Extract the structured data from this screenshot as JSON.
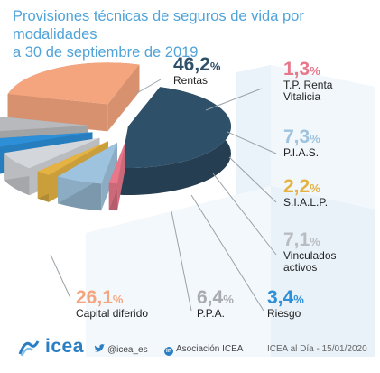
{
  "title": {
    "line1": "Provisiones técnicas de seguros de vida por modalidades",
    "line2": "a 30 de septiembre de 2019"
  },
  "chart_data": {
    "type": "pie",
    "title": "Provisiones técnicas de seguros de vida por modalidades a 30 de septiembre de 2019",
    "unit": "%",
    "slices": [
      {
        "name": "Rentas",
        "value_text": "46,2",
        "value": 46.2,
        "color": "#2f5069"
      },
      {
        "name": "T.P. Renta Vitalicia",
        "value_text": "1,3",
        "value": 1.3,
        "color": "#e8778a"
      },
      {
        "name": "P.I.A.S.",
        "value_text": "7,3",
        "value": 7.3,
        "color": "#9ec3de"
      },
      {
        "name": "S.I.A.L.P.",
        "value_text": "2,2",
        "value": 2.2,
        "color": "#e4b343"
      },
      {
        "name": "Vinculados activos",
        "value_text": "7,1",
        "value": 7.1,
        "color": "#d3d6da"
      },
      {
        "name": "Riesgo",
        "value_text": "3,4",
        "value": 3.4,
        "color": "#2c8fd8"
      },
      {
        "name": "P.P.A.",
        "value_text": "6,4",
        "value": 6.4,
        "color": "#b7b9bc"
      },
      {
        "name": "Capital diferido",
        "value_text": "26,1",
        "value": 26.1,
        "color": "#f4a57d"
      }
    ],
    "label_colors": {
      "Rentas": "#2f5069",
      "T.P. Renta Vitalicia": "#e8778a",
      "P.I.A.S.": "#9ec3de",
      "S.I.A.L.P.": "#e4b343",
      "Vinculados activos": "#b9bcc0",
      "Riesgo": "#2c8fd8",
      "P.P.A.": "#a9abae",
      "Capital diferido": "#f4a57d"
    }
  },
  "footer": {
    "logo": "icea",
    "twitter": "@icea_es",
    "linkedin": "Asociación ICEA",
    "source": "ICEA al Día - 15/01/2020"
  }
}
